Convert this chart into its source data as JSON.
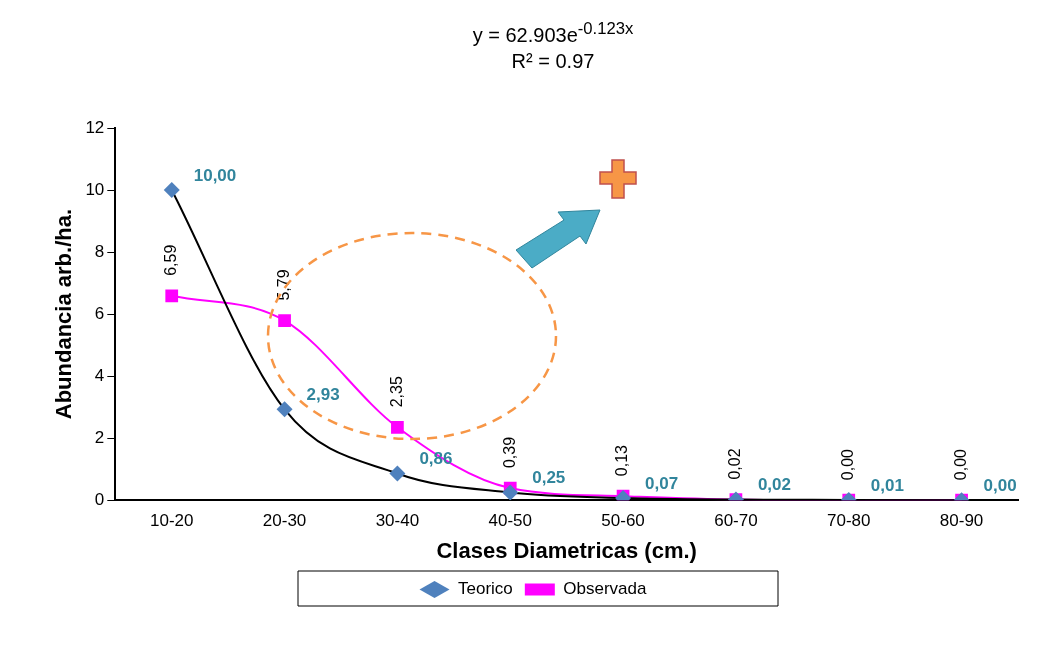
{
  "chart_data": {
    "type": "line",
    "title": "y = 62.903e$^{-0.123x}$",
    "subtitle": "R² = 0.97",
    "xlabel": "Clases Diametricas (cm.)",
    "ylabel": "Abundancia arb./ha.",
    "categories": [
      "10-20",
      "20-30",
      "30-40",
      "40-50",
      "50-60",
      "60-70",
      "70-80",
      "80-90"
    ],
    "ylim": [
      0,
      12
    ],
    "yticks": [
      0,
      2,
      4,
      6,
      8,
      10,
      12
    ],
    "grid": false,
    "legend": "bottom",
    "series": [
      {
        "name": "Teorico",
        "color": "#000000",
        "marker": "diamond",
        "values": [
          10.0,
          2.93,
          0.86,
          0.25,
          0.07,
          0.02,
          0.01,
          0.0
        ],
        "value_labels": [
          "10,00",
          "2,93",
          "0,86",
          "0,25",
          "0,07",
          "0,02",
          "0,01",
          "0,00"
        ]
      },
      {
        "name": "Observada",
        "color": "#ff00ff",
        "marker": "square",
        "values": [
          6.59,
          5.79,
          2.35,
          0.39,
          0.13,
          0.02,
          0.0,
          0.0
        ],
        "value_labels": [
          "6,59",
          "5,79",
          "2,35",
          "0,39",
          "0,13",
          "0,02",
          "0,00",
          "0,00"
        ]
      }
    ]
  }
}
